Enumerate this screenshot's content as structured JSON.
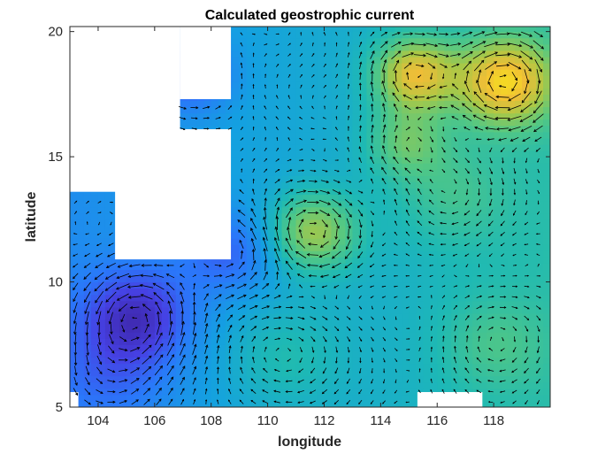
{
  "chart_data": {
    "type": "heatmap",
    "title": "Calculated geostrophic current",
    "xlabel": "longitude",
    "ylabel": "latitude",
    "xlim": [
      103,
      120
    ],
    "ylim": [
      5,
      20.2
    ],
    "xticks": [
      104,
      106,
      108,
      110,
      112,
      114,
      116,
      118
    ],
    "yticks": [
      5,
      10,
      15,
      20
    ],
    "grid": false,
    "colormap": "parula",
    "overlay": "quiver (current velocity arrows)",
    "color_low": "#3e26a8",
    "color_high": "#f9fb0e",
    "field_peaks": [
      {
        "lon": 118.4,
        "lat": 18.0,
        "strength": "high"
      },
      {
        "lon": 115.2,
        "lat": 18.3,
        "strength": "high"
      },
      {
        "lon": 111.6,
        "lat": 12.0,
        "strength": "high"
      },
      {
        "lon": 114.9,
        "lat": 15.6,
        "strength": "medium"
      },
      {
        "lon": 118.0,
        "lat": 7.5,
        "strength": "low"
      }
    ],
    "field_troughs": [
      {
        "lon": 105.4,
        "lat": 8.7
      },
      {
        "lon": 107.3,
        "lat": 18.3
      },
      {
        "lon": 108.6,
        "lat": 11.2
      }
    ],
    "masked_regions_note": "land / no-data areas shown as white"
  }
}
